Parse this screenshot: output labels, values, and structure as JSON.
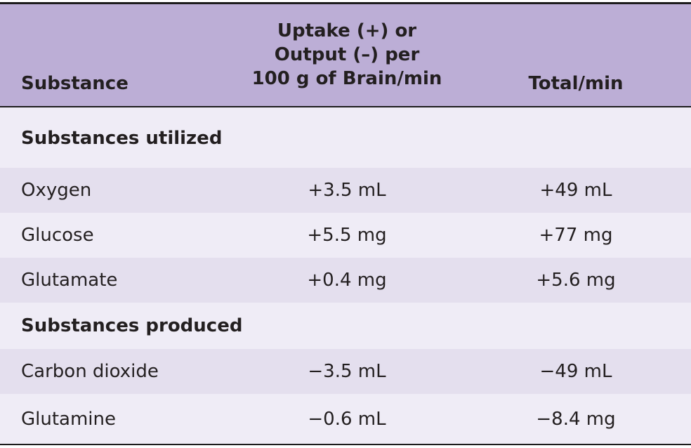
{
  "header": {
    "substance": "Substance",
    "uptake_line1": "Uptake (+) or",
    "uptake_line2": "Output (–) per",
    "uptake_line3": "100 g of Brain/min",
    "total": "Total/min"
  },
  "sections": [
    {
      "label": "Substances utilized",
      "rows": [
        {
          "substance": "Oxygen",
          "per_100g": "+3.5 mL",
          "total": "+49 mL"
        },
        {
          "substance": "Glucose",
          "per_100g": "+5.5 mg",
          "total": "+77 mg"
        },
        {
          "substance": "Glutamate",
          "per_100g": "+0.4 mg",
          "total": "+5.6 mg"
        }
      ]
    },
    {
      "label": "Substances produced",
      "rows": [
        {
          "substance": "Carbon dioxide",
          "per_100g": "−3.5 mL",
          "total": "−49 mL"
        },
        {
          "substance": "Glutamine",
          "per_100g": "−0.6 mL",
          "total": "−8.4 mg"
        }
      ]
    }
  ],
  "colors": {
    "header_bg": "#bcaed6",
    "row_light": "#efecf6",
    "row_dark": "#e4dfee",
    "rule": "#1c1c1c"
  }
}
